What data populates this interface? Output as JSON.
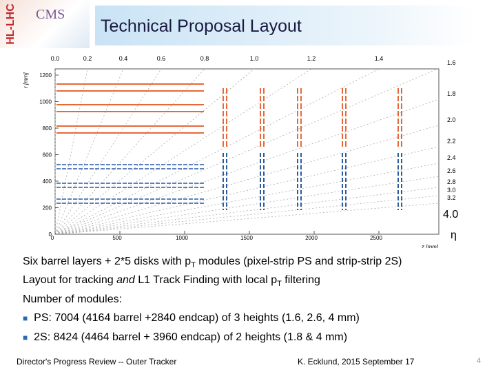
{
  "header": {
    "logo_text": "HL-LHC",
    "logo_sub": "CMS",
    "title": "Technical Proposal Layout"
  },
  "figure": {
    "xlabel": "z [mm]",
    "ylabel": "r [mm]",
    "xticks": [
      "0",
      "500",
      "1000",
      "1500",
      "2000",
      "2500"
    ],
    "yticks": [
      "0",
      "200",
      "400",
      "600",
      "800",
      "1000",
      "1200"
    ],
    "eta_top": [
      "0.0",
      "0.2",
      "0.4",
      "0.6",
      "0.8",
      "1.0",
      "1.2",
      "1.4"
    ],
    "eta_right": [
      "1.6",
      "1.8",
      "2.0",
      "2.2",
      "2.4",
      "2.6",
      "2.8",
      "3.0",
      "3.2"
    ],
    "eta_big": "4.0",
    "eta_symbol": "η"
  },
  "body": {
    "line1": [
      "Six barrel layers + 2*5 disks with p",
      "T",
      " modules (pixel-strip PS and strip-strip 2S)"
    ],
    "line2": [
      "Layout for tracking ",
      "and",
      " L1 Track Finding with local p",
      "T",
      " filtering"
    ],
    "line3": "Number of modules:",
    "bullets": [
      "PS: 7004 (4164 barrel +2840 endcap) of 3 heights (1.6, 2.6, 4 mm)",
      "2S: 8424 (4464 barrel + 3960 endcap) of 2 heights (1.8 & 4 mm)"
    ]
  },
  "footer": {
    "left": "Director's Progress Review -- Outer Tracker",
    "center": "K. Ecklund, 2015 September 17",
    "page": "4"
  }
}
